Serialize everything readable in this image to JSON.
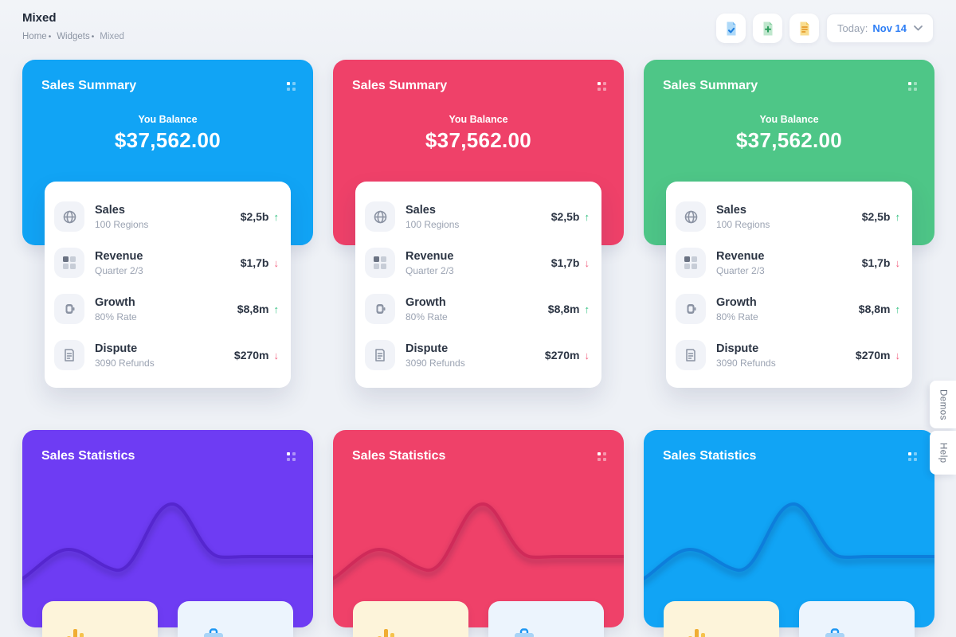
{
  "page": {
    "title": "Mixed"
  },
  "breadcrumb": {
    "separator": "•",
    "items": [
      {
        "label": "Home",
        "interactable": true
      },
      {
        "label": "Widgets",
        "interactable": true
      },
      {
        "label": "Mixed",
        "interactable": false
      }
    ]
  },
  "topbar": {
    "buttons": [
      {
        "icon": "file-check-icon",
        "color": "#1f7fe0"
      },
      {
        "icon": "file-plus-icon",
        "color": "#2f9e5f"
      },
      {
        "icon": "file-invoice-icon",
        "color": "#e59b2c"
      }
    ],
    "date_label": "Today:",
    "date_value": "Nov 14"
  },
  "theme": {
    "page_bg": "#eef1f6",
    "link_blue": "#2e7ef5",
    "trend_colors": {
      "up": "#2fbf7f",
      "down": "#f2607f"
    }
  },
  "summary_cards": [
    {
      "title": "Sales Summary",
      "accent": "#11a4f5",
      "balance_label": "You Balance",
      "balance": "$37,562.00",
      "rows": [
        {
          "icon": "globe",
          "title": "Sales",
          "subtitle": "100 Regions",
          "value": "$2,5b",
          "trend": "up",
          "arrow": "↑"
        },
        {
          "icon": "grid",
          "title": "Revenue",
          "subtitle": "Quarter 2/3",
          "value": "$1,7b",
          "trend": "down",
          "arrow": "↓"
        },
        {
          "icon": "watch",
          "title": "Growth",
          "subtitle": "80% Rate",
          "value": "$8,8m",
          "trend": "up",
          "arrow": "↑"
        },
        {
          "icon": "file-text",
          "title": "Dispute",
          "subtitle": "3090 Refunds",
          "value": "$270m",
          "trend": "down",
          "arrow": "↓"
        }
      ]
    },
    {
      "title": "Sales Summary",
      "accent": "#ef4169",
      "balance_label": "You Balance",
      "balance": "$37,562.00",
      "rows": [
        {
          "icon": "globe",
          "title": "Sales",
          "subtitle": "100 Regions",
          "value": "$2,5b",
          "trend": "up",
          "arrow": "↑"
        },
        {
          "icon": "grid",
          "title": "Revenue",
          "subtitle": "Quarter 2/3",
          "value": "$1,7b",
          "trend": "down",
          "arrow": "↓"
        },
        {
          "icon": "watch",
          "title": "Growth",
          "subtitle": "80% Rate",
          "value": "$8,8m",
          "trend": "up",
          "arrow": "↑"
        },
        {
          "icon": "file-text",
          "title": "Dispute",
          "subtitle": "3090 Refunds",
          "value": "$270m",
          "trend": "down",
          "arrow": "↓"
        }
      ]
    },
    {
      "title": "Sales Summary",
      "accent": "#4ec687",
      "balance_label": "You Balance",
      "balance": "$37,562.00",
      "rows": [
        {
          "icon": "globe",
          "title": "Sales",
          "subtitle": "100 Regions",
          "value": "$2,5b",
          "trend": "up",
          "arrow": "↑"
        },
        {
          "icon": "grid",
          "title": "Revenue",
          "subtitle": "Quarter 2/3",
          "value": "$1,7b",
          "trend": "down",
          "arrow": "↓"
        },
        {
          "icon": "watch",
          "title": "Growth",
          "subtitle": "80% Rate",
          "value": "$8,8m",
          "trend": "up",
          "arrow": "↑"
        },
        {
          "icon": "file-text",
          "title": "Dispute",
          "subtitle": "3090 Refunds",
          "value": "$270m",
          "trend": "down",
          "arrow": "↓"
        }
      ]
    }
  ],
  "stats_cards": [
    {
      "title": "Sales Statistics",
      "accent": "#6e3cf3",
      "wave_color": "#5526cf",
      "mini_boxes": [
        {
          "icon": "bar-chart",
          "bg": "#fdf4da"
        },
        {
          "icon": "briefcase",
          "bg": "#ecf4fd"
        }
      ]
    },
    {
      "title": "Sales Statistics",
      "accent": "#ef4169",
      "wave_color": "#d02a59",
      "mini_boxes": [
        {
          "icon": "bar-chart",
          "bg": "#fdf4da"
        },
        {
          "icon": "briefcase",
          "bg": "#ecf4fd"
        }
      ]
    },
    {
      "title": "Sales Statistics",
      "accent": "#11a4f5",
      "wave_color": "#0d7edb",
      "mini_boxes": [
        {
          "icon": "bar-chart",
          "bg": "#fdf4da"
        },
        {
          "icon": "briefcase",
          "bg": "#ecf4fd"
        }
      ]
    }
  ],
  "side_tabs": [
    {
      "label": "Demos"
    },
    {
      "label": "Help"
    }
  ],
  "chart_note": "wave charts are decorative sparkline shapes with no axis values visible"
}
